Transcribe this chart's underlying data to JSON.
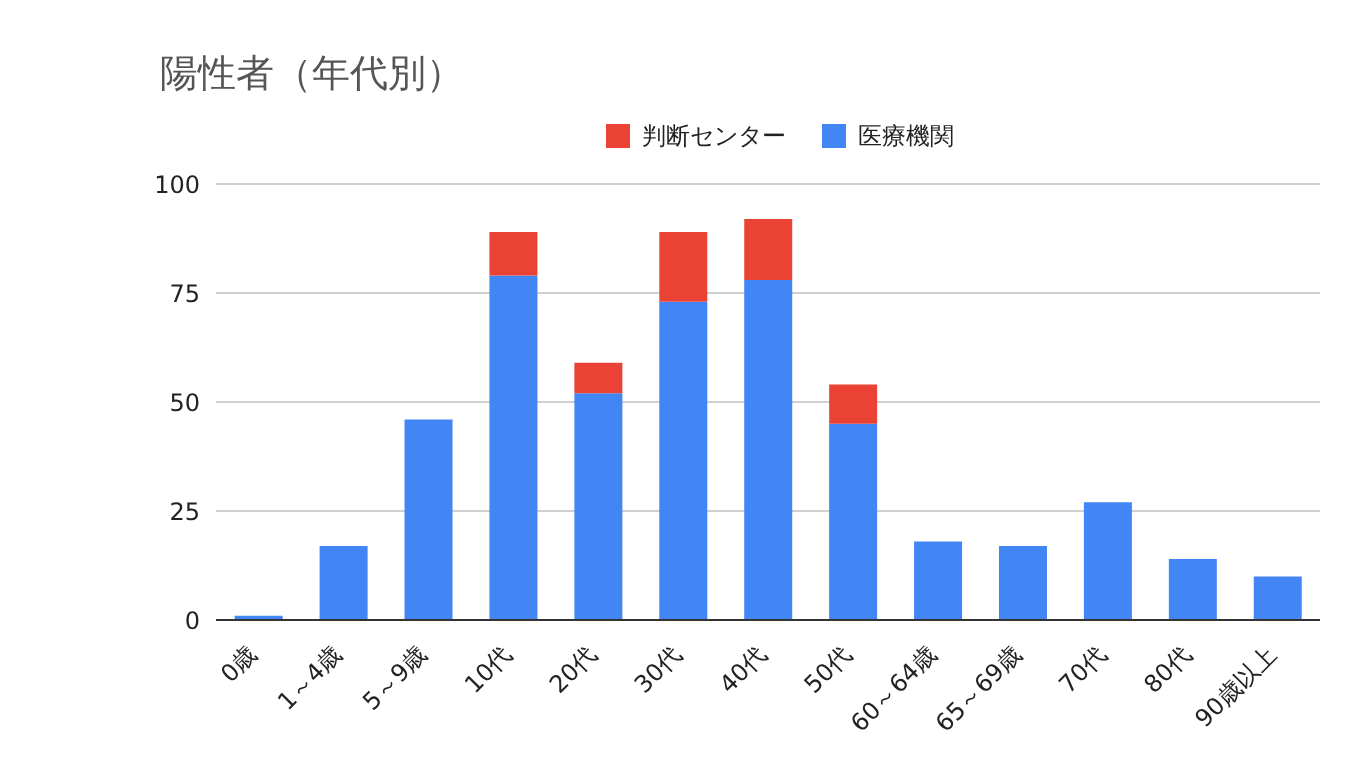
{
  "chart_data": {
    "type": "bar",
    "title": "陽性者（年代別）",
    "stacked": true,
    "legend": "top",
    "grid": "y",
    "categories": [
      "0歳",
      "1～4歳",
      "5～9歳",
      "10代",
      "20代",
      "30代",
      "40代",
      "50代",
      "60～64歳",
      "65～69歳",
      "70代",
      "80代",
      "90歳以上"
    ],
    "series": [
      {
        "name": "医療機関",
        "color": "#4285f4",
        "values": [
          1,
          17,
          46,
          79,
          52,
          73,
          78,
          45,
          18,
          17,
          27,
          14,
          10
        ]
      },
      {
        "name": "判断センター",
        "color": "#ea4335",
        "values": [
          null,
          null,
          null,
          10,
          7,
          16,
          14,
          9,
          null,
          null,
          null,
          null,
          null
        ]
      }
    ],
    "ylim": [
      0,
      100
    ],
    "yticks": [
      0,
      25,
      50,
      75,
      100
    ]
  }
}
